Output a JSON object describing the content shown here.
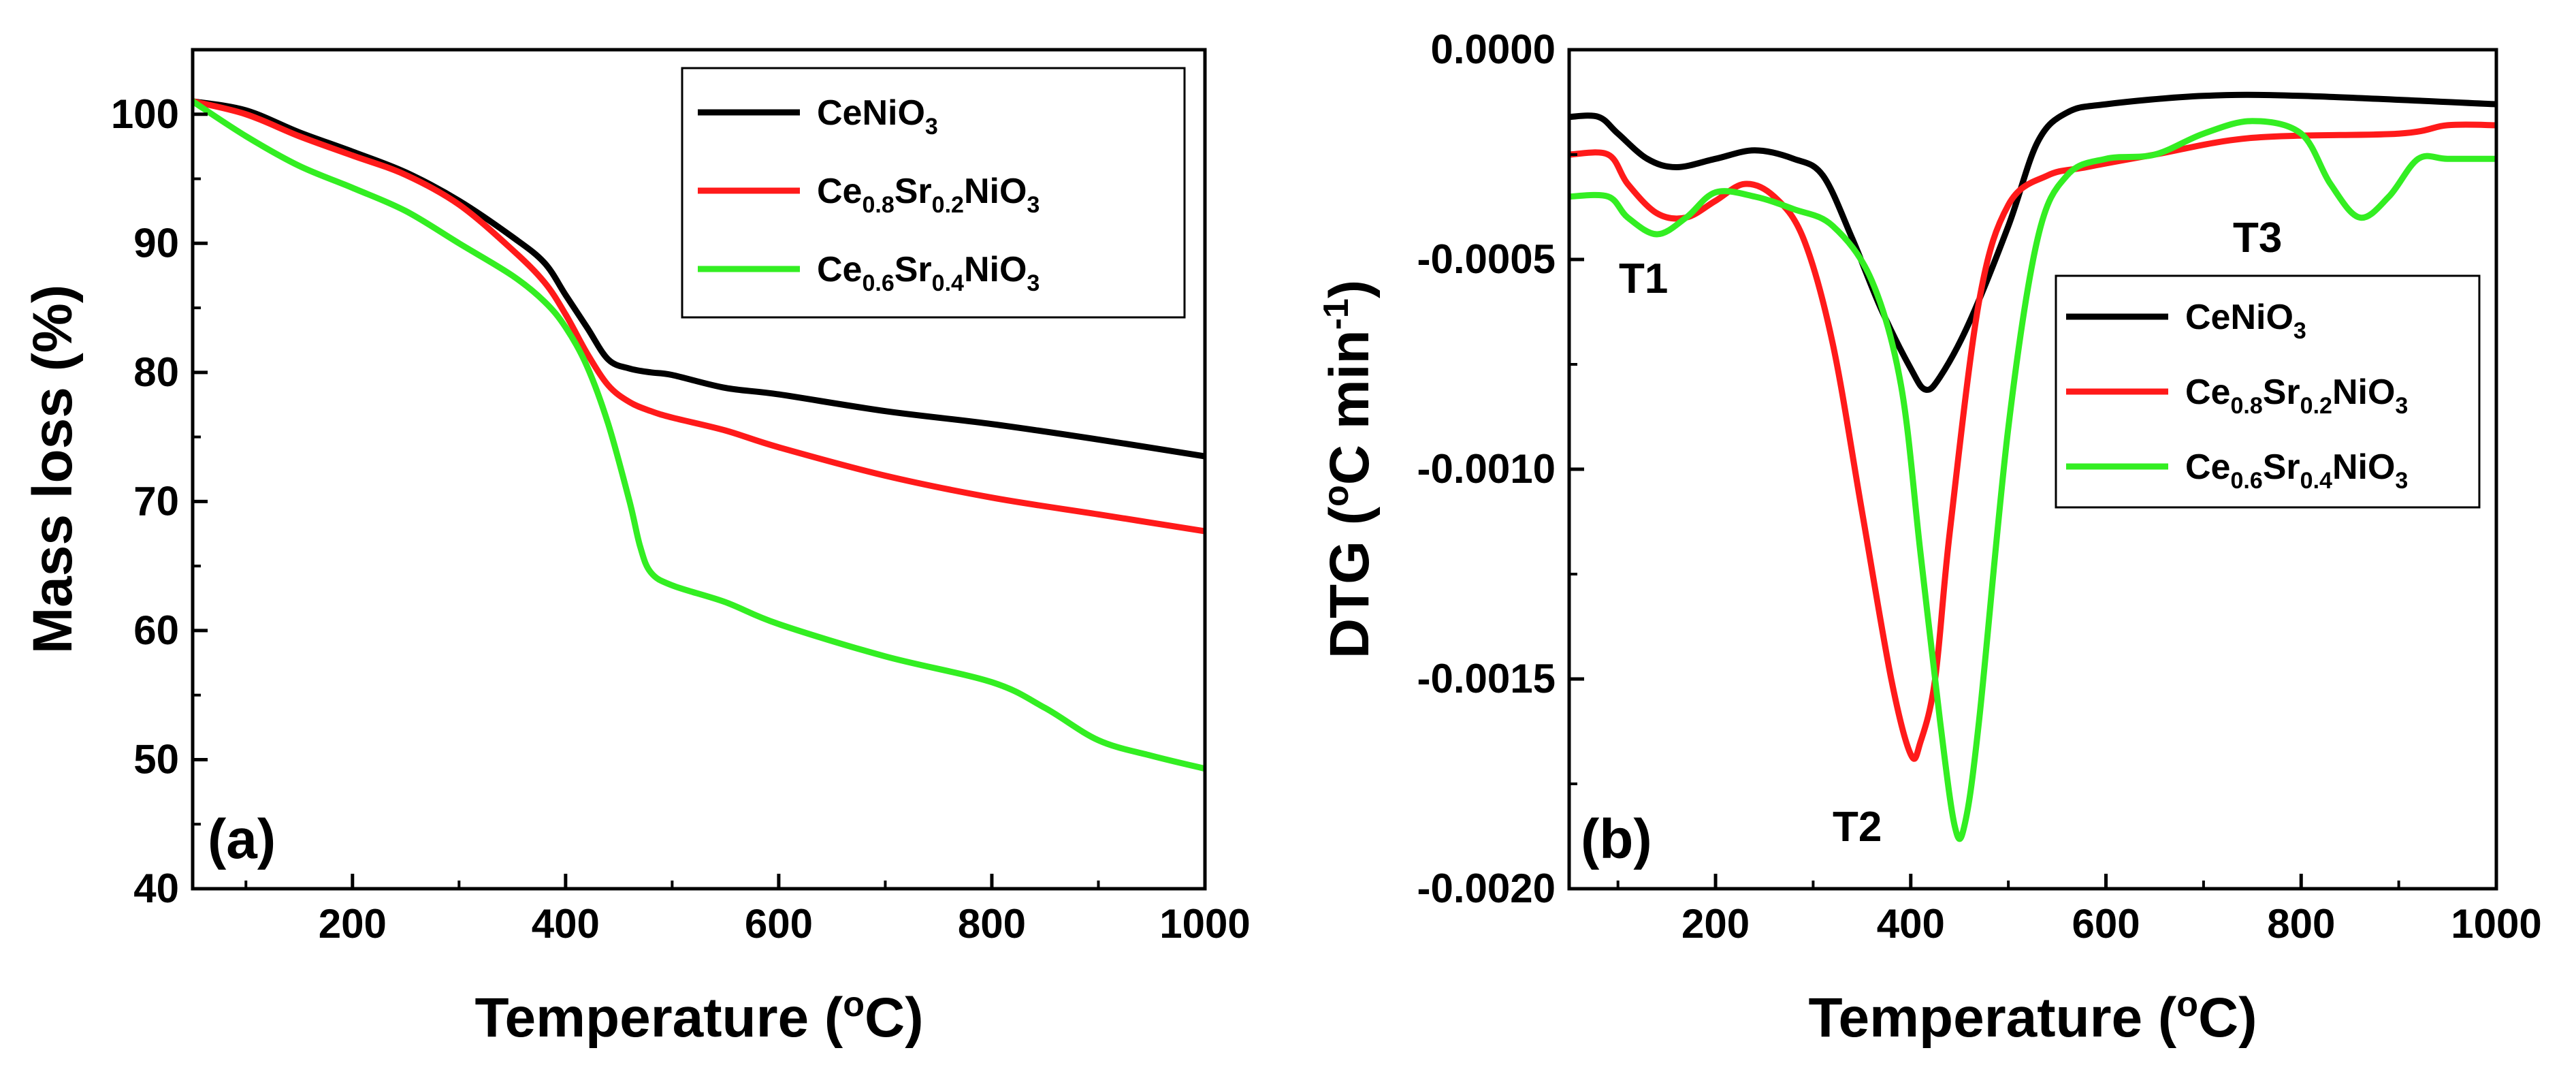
{
  "chart_data": [
    {
      "panel_label": "(a)",
      "type": "line",
      "xlabel": "Temperature (",
      "xlabel_sup": "o",
      "xlabel_end": "C)",
      "ylabel": "Mass loss (%)",
      "xlim": [
        50,
        1000
      ],
      "ylim": [
        40,
        105
      ],
      "xticks": [
        200,
        400,
        600,
        800,
        1000
      ],
      "yticks": [
        40,
        50,
        60,
        70,
        80,
        90,
        100
      ],
      "series": [
        {
          "color": "#000000",
          "legend": [
            {
              "t": "CeNiO",
              "s": ""
            },
            {
              "t": "3",
              "s": "sub"
            }
          ],
          "x": [
            50,
            100,
            150,
            200,
            250,
            300,
            350,
            380,
            400,
            420,
            440,
            460,
            480,
            500,
            550,
            600,
            700,
            800,
            900,
            1000
          ],
          "y": [
            101,
            100.3,
            98.6,
            97.1,
            95.5,
            93.3,
            90.5,
            88.5,
            86.0,
            83.5,
            81.0,
            80.3,
            80.0,
            79.8,
            78.8,
            78.3,
            77.0,
            76.0,
            74.8,
            73.5
          ]
        },
        {
          "color": "#ff1a1a",
          "legend": [
            {
              "t": "Ce",
              "s": ""
            },
            {
              "t": "0.8",
              "s": "sub"
            },
            {
              "t": "Sr",
              "s": ""
            },
            {
              "t": "0.2",
              "s": "sub"
            },
            {
              "t": "NiO",
              "s": ""
            },
            {
              "t": "3",
              "s": "sub"
            }
          ],
          "x": [
            50,
            100,
            150,
            200,
            250,
            300,
            350,
            380,
            400,
            420,
            440,
            460,
            480,
            500,
            550,
            600,
            700,
            800,
            900,
            1000
          ],
          "y": [
            101,
            100.0,
            98.3,
            96.8,
            95.3,
            93.0,
            89.5,
            87.0,
            84.5,
            81.5,
            79.0,
            77.7,
            77.0,
            76.5,
            75.5,
            74.2,
            72.0,
            70.3,
            69.0,
            67.7
          ]
        },
        {
          "color": "#33ee22",
          "legend": [
            {
              "t": "Ce",
              "s": ""
            },
            {
              "t": "0.6",
              "s": "sub"
            },
            {
              "t": "Sr",
              "s": ""
            },
            {
              "t": "0.4",
              "s": "sub"
            },
            {
              "t": "NiO",
              "s": ""
            },
            {
              "t": "3",
              "s": "sub"
            }
          ],
          "x": [
            50,
            100,
            150,
            200,
            250,
            300,
            350,
            380,
            400,
            420,
            440,
            460,
            470,
            480,
            500,
            550,
            600,
            700,
            800,
            850,
            900,
            950,
            1000
          ],
          "y": [
            101,
            98.3,
            96.0,
            94.3,
            92.5,
            90.0,
            87.5,
            85.5,
            83.5,
            80.5,
            76.0,
            70.0,
            66.5,
            64.5,
            63.5,
            62.2,
            60.5,
            58.0,
            56.0,
            54.0,
            51.5,
            50.3,
            49.3
          ]
        }
      ],
      "legend_position": "top-right"
    },
    {
      "panel_label": "(b)",
      "type": "line",
      "xlabel": "Temperature (",
      "xlabel_sup": "o",
      "xlabel_end": "C)",
      "ylabel": "DTG (",
      "ylabel_sup": "o",
      "ylabel_mid": "C min",
      "ylabel_sup2": "-1",
      "ylabel_end": ")",
      "xlim": [
        50,
        1000
      ],
      "ylim": [
        -0.002,
        0.0
      ],
      "xticks": [
        200,
        400,
        600,
        800,
        1000
      ],
      "yticks": [
        -0.002,
        -0.0015,
        -0.001,
        -0.0005,
        0.0
      ],
      "ytick_labels": [
        "-0.0020",
        "-0.0015",
        "-0.0010",
        "-0.0005",
        "0.0000"
      ],
      "annotations": [
        "T1",
        "T2",
        "T3"
      ],
      "series": [
        {
          "color": "#000000",
          "legend": [
            {
              "t": "CeNiO",
              "s": ""
            },
            {
              "t": "3",
              "s": "sub"
            }
          ],
          "x": [
            50,
            80,
            100,
            130,
            160,
            200,
            240,
            280,
            310,
            340,
            370,
            400,
            415,
            430,
            460,
            500,
            530,
            560,
            600,
            700,
            800,
            1000
          ],
          "y": [
            -0.00016,
            -0.00016,
            -0.0002,
            -0.00026,
            -0.00028,
            -0.00026,
            -0.00024,
            -0.00026,
            -0.0003,
            -0.00045,
            -0.00062,
            -0.00076,
            -0.00081,
            -0.00078,
            -0.00065,
            -0.00042,
            -0.00022,
            -0.00015,
            -0.00013,
            -0.00011,
            -0.00011,
            -0.00013
          ]
        },
        {
          "color": "#ff1a1a",
          "legend": [
            {
              "t": "Ce",
              "s": ""
            },
            {
              "t": "0.8",
              "s": "sub"
            },
            {
              "t": "Sr",
              "s": ""
            },
            {
              "t": "0.2",
              "s": "sub"
            },
            {
              "t": "NiO",
              "s": ""
            },
            {
              "t": "3",
              "s": "sub"
            }
          ],
          "x": [
            50,
            90,
            110,
            140,
            170,
            200,
            230,
            260,
            290,
            320,
            350,
            380,
            400,
            410,
            425,
            440,
            470,
            500,
            540,
            580,
            650,
            750,
            900,
            950,
            1000
          ],
          "y": [
            -0.00025,
            -0.00025,
            -0.00032,
            -0.00039,
            -0.0004,
            -0.00036,
            -0.00032,
            -0.00035,
            -0.00045,
            -0.0007,
            -0.0011,
            -0.0015,
            -0.00168,
            -0.00165,
            -0.0015,
            -0.00115,
            -0.0006,
            -0.00037,
            -0.0003,
            -0.00028,
            -0.00025,
            -0.00021,
            -0.0002,
            -0.00018,
            -0.00018
          ]
        },
        {
          "color": "#33ee22",
          "legend": [
            {
              "t": "Ce",
              "s": ""
            },
            {
              "t": "0.6",
              "s": "sub"
            },
            {
              "t": "Sr",
              "s": ""
            },
            {
              "t": "0.4",
              "s": "sub"
            },
            {
              "t": "NiO",
              "s": ""
            },
            {
              "t": "3",
              "s": "sub"
            }
          ],
          "x": [
            50,
            90,
            110,
            140,
            170,
            200,
            240,
            280,
            320,
            360,
            390,
            410,
            430,
            445,
            455,
            470,
            500,
            530,
            560,
            600,
            650,
            700,
            750,
            800,
            830,
            860,
            890,
            920,
            950,
            1000
          ],
          "y": [
            -0.00035,
            -0.00035,
            -0.0004,
            -0.00044,
            -0.0004,
            -0.00034,
            -0.00035,
            -0.00038,
            -0.00042,
            -0.00055,
            -0.0008,
            -0.0012,
            -0.0016,
            -0.00185,
            -0.00185,
            -0.0016,
            -0.0009,
            -0.00045,
            -0.0003,
            -0.00026,
            -0.00025,
            -0.0002,
            -0.00017,
            -0.0002,
            -0.00032,
            -0.0004,
            -0.00035,
            -0.00026,
            -0.00026,
            -0.00026
          ]
        }
      ],
      "legend_position": "center-right"
    }
  ]
}
